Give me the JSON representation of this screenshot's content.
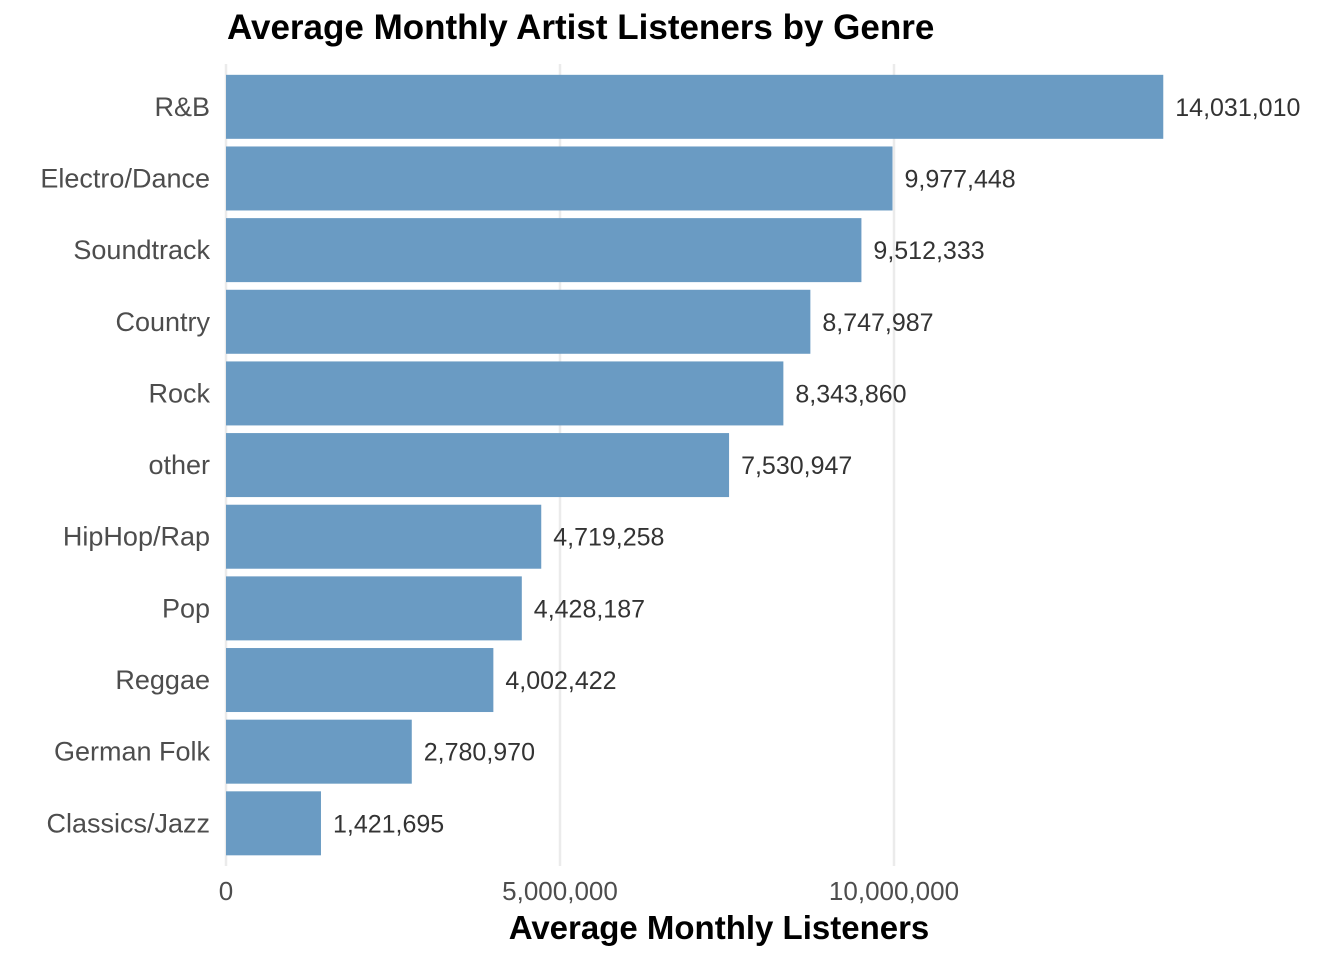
{
  "chart_data": {
    "type": "bar",
    "orientation": "horizontal",
    "title": "Average Monthly Artist Listeners by Genre",
    "xlabel": "Average Monthly Listeners",
    "ylabel": "",
    "categories": [
      "R&B",
      "Electro/Dance",
      "Soundtrack",
      "Country",
      "Rock",
      "other",
      "HipHop/Rap",
      "Pop",
      "Reggae",
      "German Folk",
      "Classics/Jazz"
    ],
    "values": [
      14031010,
      9977448,
      9512333,
      8747987,
      8343860,
      7530947,
      4719258,
      4428187,
      4002422,
      2780970,
      1421695
    ],
    "value_labels": [
      "14,031,010",
      "9,977,448",
      "9,512,333",
      "8,747,987",
      "8,343,860",
      "7,530,947",
      "4,719,258",
      "4,428,187",
      "4,002,422",
      "2,780,970",
      "1,421,695"
    ],
    "xticks": [
      0,
      5000000,
      10000000
    ],
    "xtick_labels": [
      "0",
      "5,000,000",
      "10,000,000"
    ],
    "xlim": [
      0,
      14031010
    ],
    "grid": true,
    "bar_color": "#6a9bc3",
    "grid_color": "#ebebeb"
  }
}
